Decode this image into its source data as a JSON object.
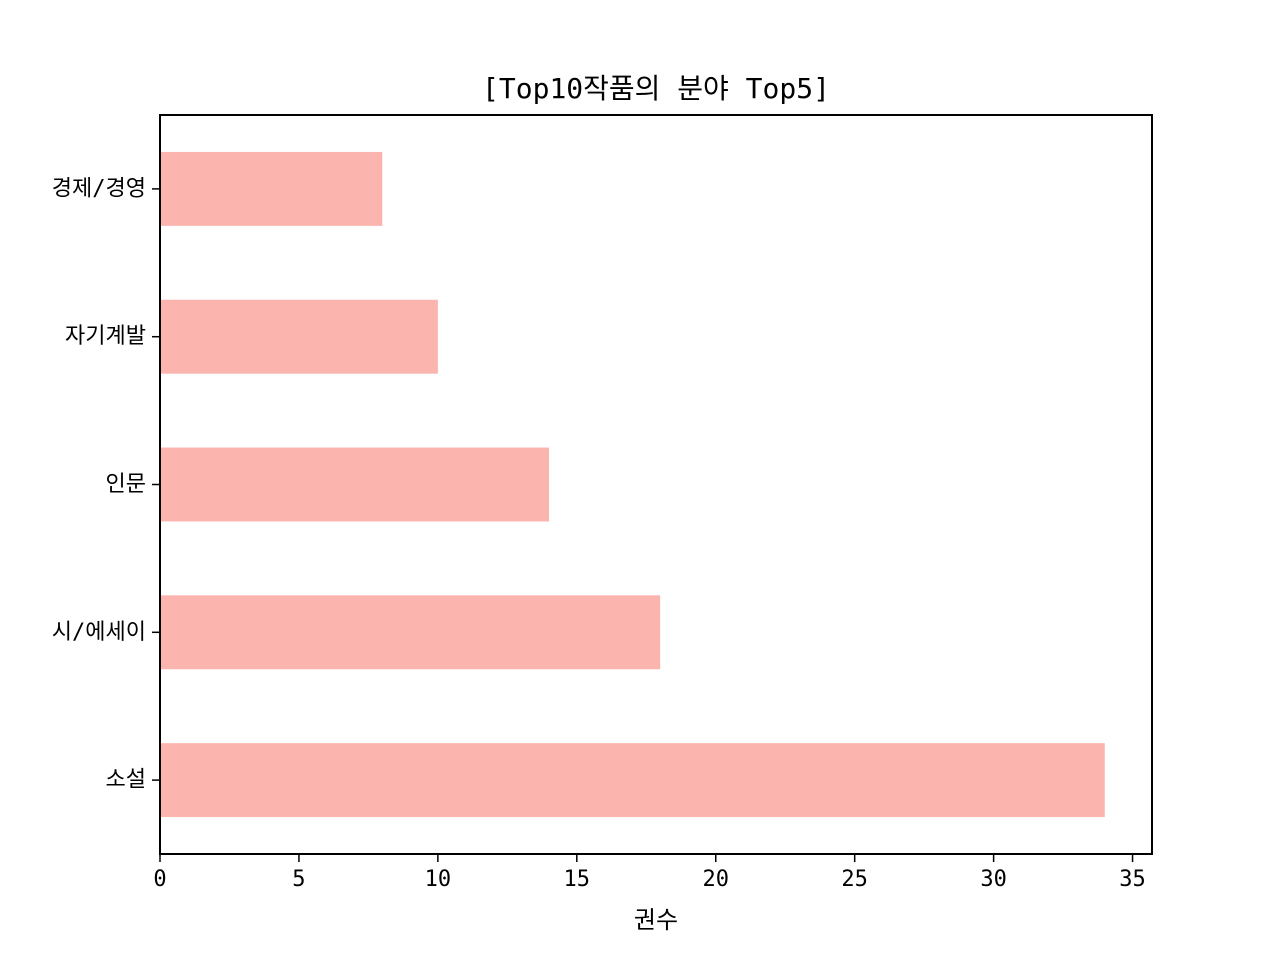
{
  "chart_data": {
    "type": "bar",
    "orientation": "horizontal",
    "title": "[Top10작품의 분야 Top5]",
    "xlabel": "권수",
    "ylabel": "",
    "categories": [
      "소설",
      "시/에세이",
      "인문",
      "자기계발",
      "경제/경영"
    ],
    "values": [
      34,
      18,
      14,
      10,
      8
    ],
    "xlim": [
      0,
      35.7
    ],
    "xticks": [
      "0",
      "5",
      "10",
      "15",
      "20",
      "25",
      "30",
      "35"
    ],
    "grid": false,
    "legend": "none",
    "bar_color": "#fbb4ae"
  }
}
